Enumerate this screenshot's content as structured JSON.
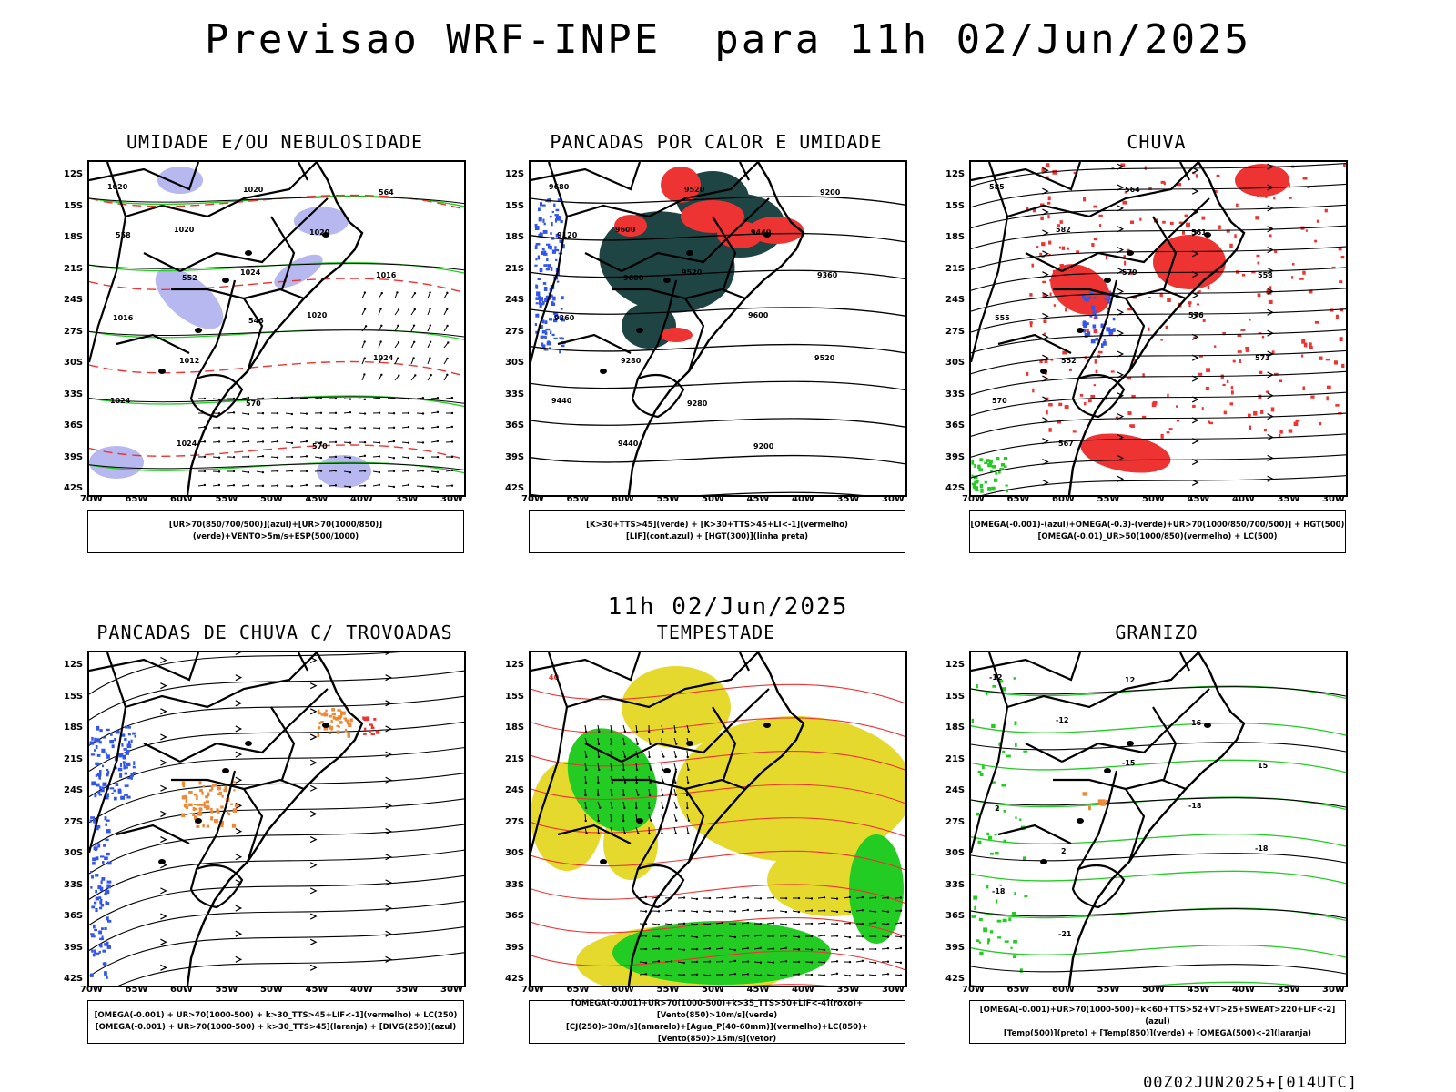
{
  "header": {
    "title": "Previsao WRF-INPE  para 11h 02/Jun/2025",
    "mid_date": "11h 02/Jun/2025",
    "footer": "00Z02JUN2025+[014UTC]"
  },
  "axes": {
    "lat_labels": [
      "12S",
      "15S",
      "18S",
      "21S",
      "24S",
      "27S",
      "30S",
      "33S",
      "36S",
      "39S",
      "42S"
    ],
    "lon_labels": [
      "70W",
      "65W",
      "60W",
      "55W",
      "50W",
      "45W",
      "40W",
      "35W",
      "30W"
    ]
  },
  "colors": {
    "blue": "#3355ee",
    "lightblue": "#b8b8f0",
    "green": "#22cc22",
    "red": "#ee3333",
    "darkteal": "#1f4444",
    "yellow": "#e6d92e",
    "orange": "#ee8833"
  },
  "panels": [
    {
      "title": "UMIDADE E/OU NEBULOSIDADE",
      "legend": [
        "[UR>70(850/700/500)](azul)+[UR>70(1000/850)](verde)+VENTO>5m/s+ESP(500/1000)"
      ],
      "labels": [
        "1020",
        "1020",
        "1024",
        "1020",
        "1024",
        "1024",
        "1024",
        "1020",
        "1020",
        "1016",
        "1016",
        "1012",
        "570",
        "570",
        "564",
        "558",
        "552",
        "546"
      ]
    },
    {
      "title": "PANCADAS POR CALOR E UMIDADE",
      "legend": [
        "[K>30+TTS>45](verde) + [K>30+TTS>45+LI<-1](vermelho)",
        "[LIF](cont.azul) + [HGT(300)](linha preta)"
      ],
      "labels": [
        "9680",
        "9600",
        "9520",
        "9600",
        "9520",
        "9440",
        "9440",
        "9520",
        "9440",
        "9360",
        "9360",
        "9280",
        "9280",
        "9200",
        "9200",
        "9120",
        "9600"
      ]
    },
    {
      "title": "CHUVA",
      "legend": [
        "[OMEGA(-0.001)-(azul)+OMEGA(-0.3)-(verde)+UR>70(1000/850/700/500)] + HGT(500)",
        "[OMEGA(-0.01)_UR>50(1000/850)(vermelho) + LC(500)"
      ],
      "labels": [
        "585",
        "582",
        "579",
        "576",
        "573",
        "570",
        "567",
        "564",
        "561",
        "558",
        "555",
        "552"
      ]
    },
    {
      "title": "PANCADAS DE CHUVA C/ TROVOADAS",
      "legend": [
        "[OMEGA(-0.001) + UR>70(1000-500) + k>30_TTS>45+LIF<-1](vermelho) + LC(250)",
        "[OMEGA(-0.001) + UR>70(1000-500) + k>30_TTS>45](laranja) + [DIVG(250)](azul)"
      ],
      "labels": []
    },
    {
      "title": "TEMPESTADE",
      "legend": [
        "[OMEGA(-0.001)+UR>70(1000-500)+k>35_TTS>50+LIF<-4](roxo)+[Vento(850)>10m/s](verde)",
        "[CJ(250)>30m/s](amarelo)+[Agua_P(40-60mm)](vermelho)+LC(850)+[Vento(850)>15m/s](vetor)"
      ],
      "labels": [
        "40"
      ]
    },
    {
      "title": "GRANIZO",
      "legend": [
        "[OMEGA(-0.001)+UR>70(1000-500)+k<60+TTS>52+VT>25+SWEAT>220+LIF<-2](azul)",
        "[Temp(500)](preto) + [Temp(850)](verde) + [OMEGA(500)<-2](laranja)"
      ],
      "labels": [
        "-12",
        "-12",
        "-15",
        "-18",
        "-18",
        "-18",
        "-21",
        "12",
        "16",
        "15",
        "2",
        "2"
      ]
    }
  ]
}
